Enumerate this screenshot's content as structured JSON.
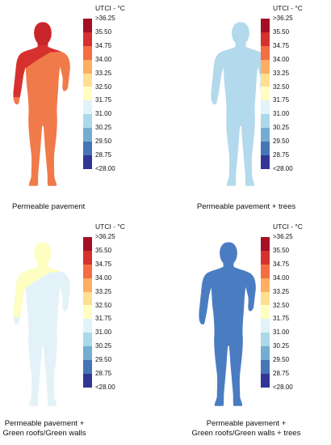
{
  "legend": {
    "title": "UTCI - °C",
    "labels": [
      ">36.25",
      "35.50",
      "34.75",
      "34.00",
      "33.25",
      "32.50",
      "31.75",
      "31.00",
      "30.25",
      "29.50",
      "28.75",
      "<28.00"
    ],
    "colors": [
      "#a50f26",
      "#d6312f",
      "#f46d43",
      "#fdae61",
      "#fee090",
      "#fffec0",
      "#e0f3f8",
      "#abd9e9",
      "#74add1",
      "#4575b4",
      "#313695"
    ]
  },
  "panels": [
    {
      "caption_lines": [
        "Permeable pavement"
      ],
      "body_color": "#f07a4a",
      "head_color": "#c8262a",
      "overlay_color": "#d6312f"
    },
    {
      "caption_lines": [
        "Permeable pavement + trees"
      ],
      "body_color": "#b3d9ec",
      "head_color": "#b3d9ec",
      "overlay_color": "#b3d9ec"
    },
    {
      "caption_lines": [
        "Permeable pavement +",
        "Green roofs/Green walls"
      ],
      "body_color": "#e3f2f8",
      "head_color": "#fefec2",
      "overlay_color": "#fefec2"
    },
    {
      "caption_lines": [
        "Permeable pavement +",
        "Green roofs/Green walls + trees"
      ],
      "body_color": "#4a7cc2",
      "head_color": "#4a7cc2",
      "overlay_color": "#4a7cc2"
    }
  ]
}
